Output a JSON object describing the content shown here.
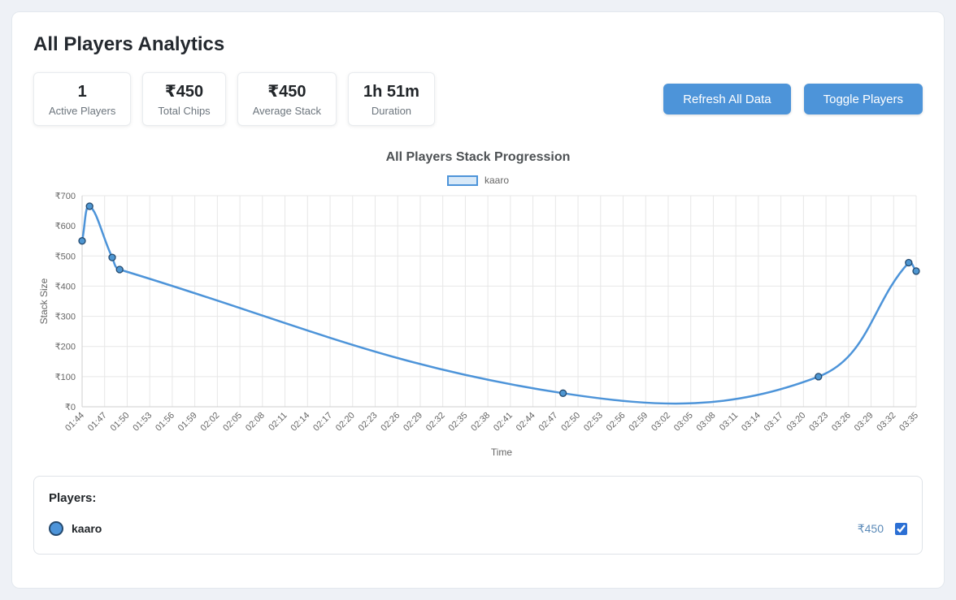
{
  "page": {
    "title": "All Players Analytics"
  },
  "stats": [
    {
      "value": "1",
      "label": "Active Players"
    },
    {
      "value": "₹450",
      "label": "Total Chips"
    },
    {
      "value": "₹450",
      "label": "Average Stack"
    },
    {
      "value": "1h 51m",
      "label": "Duration"
    }
  ],
  "buttons": {
    "refresh": "Refresh All Data",
    "toggle": "Toggle Players"
  },
  "chart_data": {
    "type": "line",
    "title": "All Players Stack Progression",
    "xlabel": "Time",
    "ylabel": "Stack Size",
    "ylim": [
      0,
      700
    ],
    "grid": true,
    "legend_position": "top",
    "y_ticks": [
      "₹0",
      "₹100",
      "₹200",
      "₹300",
      "₹400",
      "₹500",
      "₹600",
      "₹700"
    ],
    "x_ticks": [
      "01:44",
      "01:47",
      "01:50",
      "01:53",
      "01:56",
      "01:59",
      "02:02",
      "02:05",
      "02:08",
      "02:11",
      "02:14",
      "02:17",
      "02:20",
      "02:23",
      "02:26",
      "02:29",
      "02:32",
      "02:35",
      "02:38",
      "02:41",
      "02:44",
      "02:47",
      "02:50",
      "02:53",
      "02:56",
      "02:59",
      "03:02",
      "03:05",
      "03:08",
      "03:11",
      "03:14",
      "03:17",
      "03:20",
      "03:23",
      "03:26",
      "03:29",
      "03:32",
      "03:35"
    ],
    "series": [
      {
        "name": "kaaro",
        "color": "#4d94d9",
        "fill_color": "#d8e9f8",
        "point_fill": "#4e96d1",
        "point_border": "#24496e",
        "points": [
          {
            "time": "01:44",
            "stack": 550
          },
          {
            "time": "01:45",
            "stack": 665
          },
          {
            "time": "01:48",
            "stack": 495
          },
          {
            "time": "01:49",
            "stack": 455
          },
          {
            "time": "02:48",
            "stack": 45
          },
          {
            "time": "03:22",
            "stack": 100
          },
          {
            "time": "03:34",
            "stack": 478
          },
          {
            "time": "03:35",
            "stack": 450
          }
        ]
      }
    ]
  },
  "players_panel": {
    "heading": "Players:",
    "players": [
      {
        "name": "kaaro",
        "stack": "₹450",
        "visible": true,
        "color": "#4d94d9",
        "border_color": "#24496e"
      }
    ]
  },
  "colors": {
    "button": "#4d94d9",
    "page_background": "#eef1f6",
    "stack_value_text": "#5b8ab8"
  }
}
